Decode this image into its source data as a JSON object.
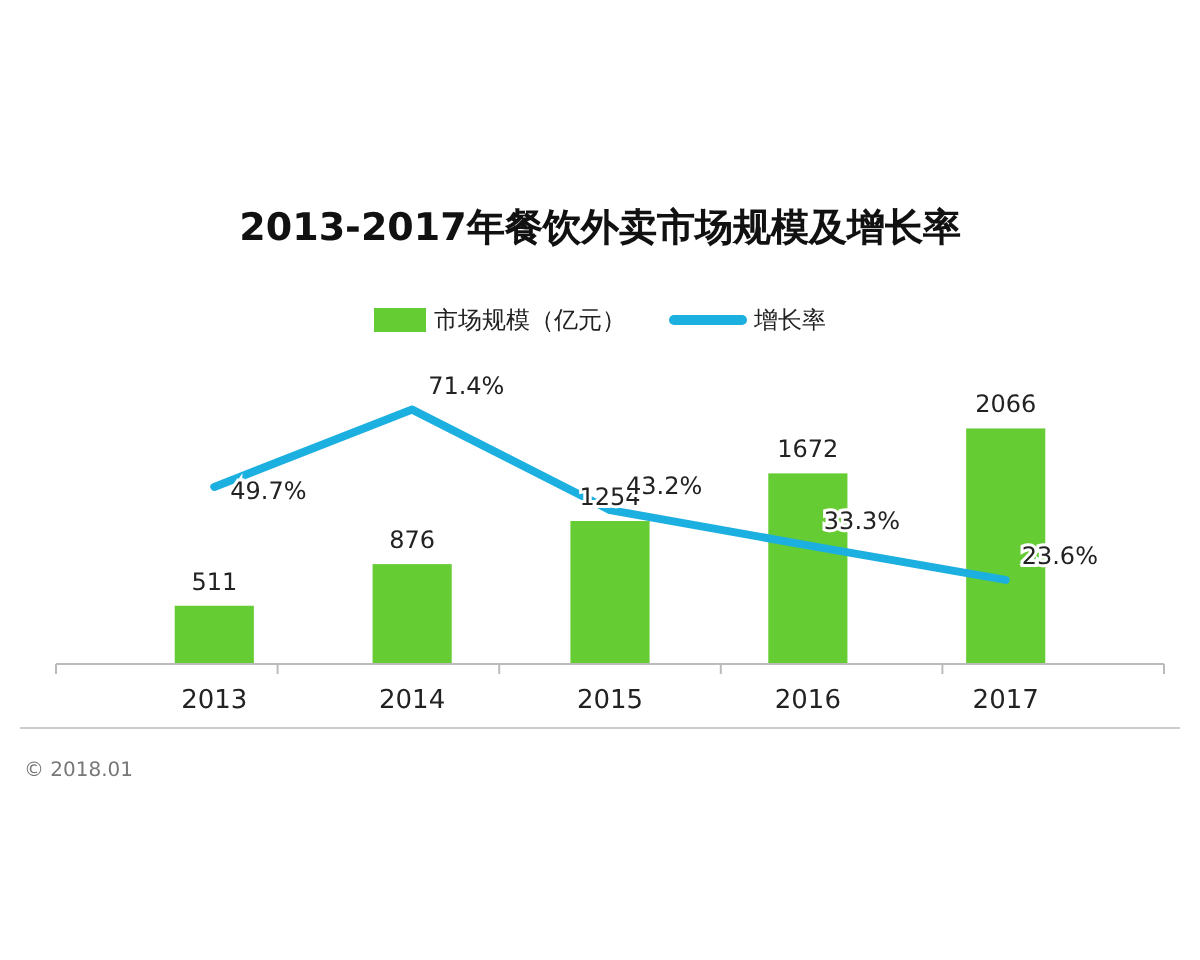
{
  "chart_data": {
    "type": "bar",
    "title": "2013-2017年餐饮外卖市场规模及增长率",
    "categories": [
      "2013",
      "2014",
      "2015",
      "2016",
      "2017"
    ],
    "series": [
      {
        "name": "市场规模（亿元）",
        "color": "#66cc33",
        "values": [
          511,
          876,
          1254,
          1672,
          2066
        ]
      },
      {
        "name": "增长率",
        "type": "line",
        "axis": "y2",
        "color": "#1cb0e0",
        "values": [
          49.7,
          71.4,
          43.2,
          33.3,
          23.6
        ],
        "value_labels": [
          "49.7%",
          "71.4%",
          "43.2%",
          "33.3%",
          "23.6%"
        ]
      }
    ],
    "tick_labels": "x",
    "data_labels": true,
    "legend": "top",
    "grid": false,
    "marker": "none",
    "annotations": [
      "© 2018.01"
    ]
  }
}
